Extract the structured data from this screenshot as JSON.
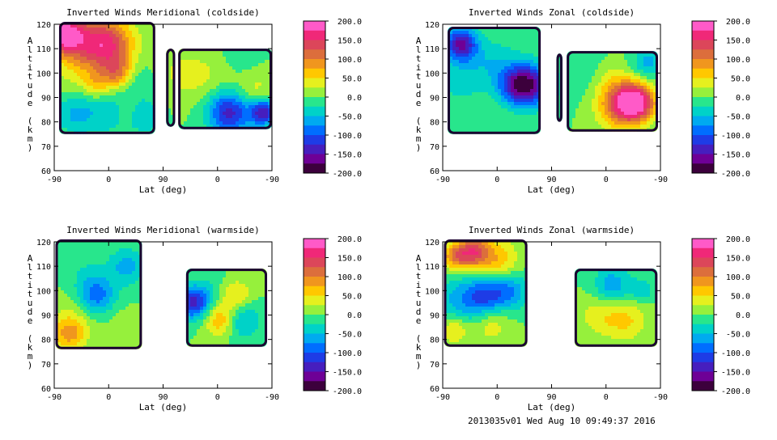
{
  "chart_data": [
    {
      "type": "heatmap",
      "title": "Inverted Winds Meridional (coldside)",
      "xlabel": "Lat (deg)",
      "ylabel": "Altitude (km)",
      "x_ticks": [
        "-90",
        "0",
        "90",
        "0",
        "-90"
      ],
      "y_ticks": [
        "60",
        "70",
        "80",
        "90",
        "100",
        "110",
        "120"
      ],
      "ylim": [
        60,
        120
      ],
      "colorbar": {
        "ticks": [
          "200.0",
          "150.0",
          "100.0",
          "50.0",
          "0.0",
          "-50.0",
          "-100.0",
          "-150.0",
          "-200.0"
        ],
        "range": [
          -200,
          200
        ]
      },
      "blobs": [
        {
          "x": -75,
          "y": 116,
          "r": 14,
          "v": 180
        },
        {
          "x": -30,
          "y": 112,
          "r": 22,
          "v": 110
        },
        {
          "x": 5,
          "y": 112,
          "r": 18,
          "v": 90
        },
        {
          "x": -50,
          "y": 95,
          "r": 22,
          "v": 20
        },
        {
          "x": -20,
          "y": 95,
          "r": 10,
          "v": 40
        },
        {
          "x": 15,
          "y": 100,
          "r": 12,
          "v": 90
        },
        {
          "x": 45,
          "y": 96,
          "r": 16,
          "v": -30
        },
        {
          "x": -55,
          "y": 84,
          "r": 16,
          "v": -60
        },
        {
          "x": 0,
          "y": 84,
          "r": 18,
          "v": -40
        },
        {
          "x": 35,
          "y": 85,
          "r": 12,
          "v": 20
        },
        {
          "x": 60,
          "y": 82,
          "r": 12,
          "v": -50
        },
        {
          "x": 120,
          "y": 100,
          "r": 20,
          "v": 30
        },
        {
          "x": 170,
          "y": 98,
          "r": 18,
          "v": 20
        },
        {
          "x": 200,
          "y": 84,
          "r": 16,
          "v": -140
        },
        {
          "x": 240,
          "y": 92,
          "r": 16,
          "v": 40
        },
        {
          "x": 220,
          "y": 106,
          "r": 14,
          "v": -20
        },
        {
          "x": 255,
          "y": 84,
          "r": 10,
          "v": -150
        }
      ],
      "regions": [
        {
          "x": [
            -82,
            77
          ],
          "y": [
            75,
            121
          ]
        },
        {
          "x": [
            95,
            110
          ],
          "y": [
            78,
            110
          ]
        },
        {
          "x": [
            115,
            270
          ],
          "y": [
            77,
            110
          ]
        }
      ]
    },
    {
      "type": "heatmap",
      "title": "Inverted Winds Zonal (coldside)",
      "xlabel": "Lat (deg)",
      "ylabel": "Altitude (km)",
      "x_ticks": [
        "-90",
        "0",
        "90",
        "0",
        "-90"
      ],
      "y_ticks": [
        "60",
        "70",
        "80",
        "90",
        "100",
        "110",
        "120"
      ],
      "ylim": [
        60,
        120
      ],
      "colorbar": {
        "ticks": [
          "200.0",
          "150.0",
          "100.0",
          "50.0",
          "0.0",
          "-50.0",
          "-100.0",
          "-150.0",
          "-200.0"
        ],
        "range": [
          -200,
          200
        ]
      },
      "blobs": [
        {
          "x": -50,
          "y": 98,
          "r": 24,
          "v": -40
        },
        {
          "x": -20,
          "y": 92,
          "r": 16,
          "v": 10
        },
        {
          "x": 0,
          "y": 105,
          "r": 18,
          "v": -30
        },
        {
          "x": 30,
          "y": 95,
          "r": 14,
          "v": -90
        },
        {
          "x": 55,
          "y": 95,
          "r": 16,
          "v": -140
        },
        {
          "x": -60,
          "y": 112,
          "r": 12,
          "v": -150
        },
        {
          "x": 150,
          "y": 100,
          "r": 20,
          "v": -20
        },
        {
          "x": 190,
          "y": 96,
          "r": 16,
          "v": 40
        },
        {
          "x": 230,
          "y": 88,
          "r": 14,
          "v": 190
        },
        {
          "x": 200,
          "y": 86,
          "r": 16,
          "v": 100
        },
        {
          "x": 250,
          "y": 104,
          "r": 12,
          "v": -60
        }
      ],
      "regions": [
        {
          "x": [
            -82,
            72
          ],
          "y": [
            75,
            119
          ]
        },
        {
          "x": [
            98,
            108
          ],
          "y": [
            80,
            108
          ]
        },
        {
          "x": [
            115,
            266
          ],
          "y": [
            76,
            109
          ]
        }
      ]
    },
    {
      "type": "heatmap",
      "title": "Inverted Winds Meridional (warmside)",
      "xlabel": "Lat (deg)",
      "ylabel": "Altitude (km)",
      "x_ticks": [
        "-90",
        "0",
        "90",
        "0",
        "-90"
      ],
      "y_ticks": [
        "60",
        "70",
        "80",
        "90",
        "100",
        "110",
        "120"
      ],
      "ylim": [
        60,
        120
      ],
      "colorbar": {
        "ticks": [
          "200.0",
          "150.0",
          "100.0",
          "50.0",
          "0.0",
          "-50.0",
          "-100.0",
          "-150.0",
          "-200.0"
        ],
        "range": [
          -200,
          200
        ]
      },
      "blobs": [
        {
          "x": -20,
          "y": 98,
          "r": 14,
          "v": -90
        },
        {
          "x": -60,
          "y": 88,
          "r": 18,
          "v": 30
        },
        {
          "x": -65,
          "y": 82,
          "r": 12,
          "v": 70
        },
        {
          "x": 20,
          "y": 88,
          "r": 14,
          "v": 10
        },
        {
          "x": -40,
          "y": 108,
          "r": 16,
          "v": -20
        },
        {
          "x": 30,
          "y": 110,
          "r": 14,
          "v": -60
        },
        {
          "x": 170,
          "y": 100,
          "r": 16,
          "v": -20
        },
        {
          "x": 210,
          "y": 98,
          "r": 12,
          "v": 60
        },
        {
          "x": 185,
          "y": 88,
          "r": 12,
          "v": 80
        },
        {
          "x": 220,
          "y": 88,
          "r": 14,
          "v": -60
        },
        {
          "x": 140,
          "y": 95,
          "r": 12,
          "v": -130
        }
      ],
      "regions": [
        {
          "x": [
            -88,
            55
          ],
          "y": [
            76,
            121
          ]
        },
        {
          "x": [
            128,
            262
          ],
          "y": [
            77,
            109
          ]
        }
      ]
    },
    {
      "type": "heatmap",
      "title": "Inverted Winds Zonal (warmside)",
      "xlabel": "Lat (deg)",
      "ylabel": "Altitude (km)",
      "x_ticks": [
        "-90",
        "0",
        "90",
        "0",
        "-90"
      ],
      "y_ticks": [
        "60",
        "70",
        "80",
        "90",
        "100",
        "110",
        "120"
      ],
      "ylim": [
        60,
        120
      ],
      "colorbar": {
        "ticks": [
          "200.0",
          "150.0",
          "100.0",
          "50.0",
          "0.0",
          "-50.0",
          "-100.0",
          "-150.0",
          "-200.0"
        ],
        "range": [
          -200,
          200
        ]
      },
      "blobs": [
        {
          "x": -40,
          "y": 116,
          "r": 12,
          "v": 130
        },
        {
          "x": -70,
          "y": 114,
          "r": 10,
          "v": 90
        },
        {
          "x": 0,
          "y": 112,
          "r": 16,
          "v": 70
        },
        {
          "x": -60,
          "y": 96,
          "r": 18,
          "v": -60
        },
        {
          "x": -20,
          "y": 98,
          "r": 14,
          "v": -90
        },
        {
          "x": 20,
          "y": 100,
          "r": 14,
          "v": -80
        },
        {
          "x": -10,
          "y": 86,
          "r": 14,
          "v": 40
        },
        {
          "x": -70,
          "y": 84,
          "r": 10,
          "v": 60
        },
        {
          "x": 170,
          "y": 90,
          "r": 16,
          "v": 40
        },
        {
          "x": 215,
          "y": 88,
          "r": 16,
          "v": 50
        },
        {
          "x": 190,
          "y": 102,
          "r": 14,
          "v": -70
        },
        {
          "x": 240,
          "y": 100,
          "r": 10,
          "v": -40
        }
      ],
      "regions": [
        {
          "x": [
            -88,
            50
          ],
          "y": [
            77,
            121
          ]
        },
        {
          "x": [
            128,
            265
          ],
          "y": [
            77,
            109
          ]
        }
      ]
    }
  ],
  "footer": "2013035v01 Wed Aug 10 09:49:37 2016"
}
